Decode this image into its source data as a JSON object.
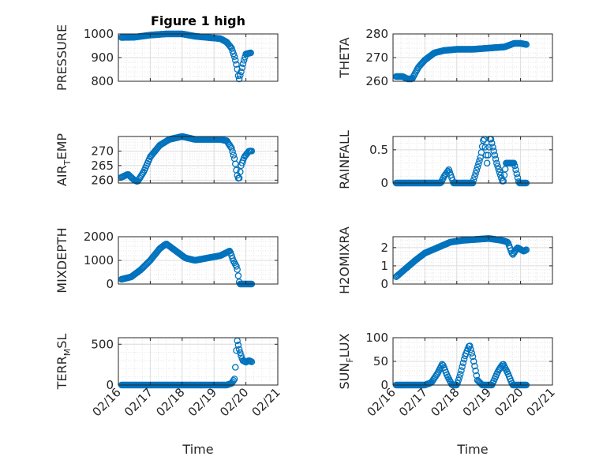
{
  "chart_data": [
    {
      "type": "scatter",
      "title": "Figure 1 high",
      "ylabel_main": "PRESSURE",
      "ylabel_sub": "",
      "ylim": [
        800,
        1000
      ],
      "yticks": [
        "800",
        "900",
        "1000"
      ],
      "xticks": [
        "02/16",
        "02/17",
        "02/18",
        "02/19",
        "02/20",
        "02/21"
      ],
      "show_xticks": false,
      "xlabel": "",
      "grid": true,
      "marker_color": "#0072bd",
      "keypoints": [
        [
          16.1,
          985
        ],
        [
          16.5,
          986
        ],
        [
          17.0,
          995
        ],
        [
          17.5,
          1000
        ],
        [
          18.0,
          1000
        ],
        [
          18.4,
          990
        ],
        [
          18.8,
          985
        ],
        [
          19.2,
          980
        ],
        [
          19.4,
          965
        ],
        [
          19.55,
          940
        ],
        [
          19.65,
          900
        ],
        [
          19.72,
          860
        ],
        [
          19.78,
          805
        ],
        [
          19.85,
          840
        ],
        [
          19.92,
          880
        ],
        [
          20.0,
          915
        ],
        [
          20.15,
          920
        ]
      ]
    },
    {
      "type": "scatter",
      "title": "",
      "ylabel_main": "THETA",
      "ylabel_sub": "",
      "ylim": [
        260,
        280
      ],
      "yticks": [
        "260",
        "270",
        "280"
      ],
      "xticks": [
        "02/16",
        "02/17",
        "02/18",
        "02/19",
        "02/20",
        "02/21"
      ],
      "show_xticks": false,
      "xlabel": "",
      "grid": true,
      "marker_color": "#0072bd",
      "keypoints": [
        [
          16.1,
          262
        ],
        [
          16.3,
          262
        ],
        [
          16.45,
          261
        ],
        [
          16.6,
          261
        ],
        [
          16.8,
          266
        ],
        [
          17.0,
          269
        ],
        [
          17.3,
          272
        ],
        [
          17.6,
          273
        ],
        [
          18.0,
          273.5
        ],
        [
          18.5,
          273.5
        ],
        [
          19.0,
          274
        ],
        [
          19.5,
          274.5
        ],
        [
          19.8,
          276
        ],
        [
          20.0,
          276
        ],
        [
          20.2,
          275.5
        ]
      ]
    },
    {
      "type": "scatter",
      "title": "",
      "ylabel_main": "AIR",
      "ylabel_sub": "T",
      "ylabel_rest": "EMP",
      "ylim": [
        259,
        275
      ],
      "yticks": [
        "260",
        "265",
        "270"
      ],
      "xticks": [
        "02/16",
        "02/17",
        "02/18",
        "02/19",
        "02/20",
        "02/21"
      ],
      "show_xticks": false,
      "xlabel": "",
      "grid": true,
      "marker_color": "#0072bd",
      "keypoints": [
        [
          16.1,
          261
        ],
        [
          16.3,
          262
        ],
        [
          16.5,
          260
        ],
        [
          16.6,
          259.5
        ],
        [
          16.8,
          263
        ],
        [
          17.0,
          268
        ],
        [
          17.3,
          272
        ],
        [
          17.6,
          274
        ],
        [
          18.0,
          275
        ],
        [
          18.4,
          274
        ],
        [
          18.8,
          274
        ],
        [
          19.2,
          274
        ],
        [
          19.4,
          273.5
        ],
        [
          19.55,
          271
        ],
        [
          19.65,
          267
        ],
        [
          19.72,
          262
        ],
        [
          19.78,
          260
        ],
        [
          19.85,
          265
        ],
        [
          19.95,
          268
        ],
        [
          20.1,
          270
        ],
        [
          20.2,
          270
        ]
      ]
    },
    {
      "type": "scatter",
      "title": "",
      "ylabel_main": "RAINFALL",
      "ylabel_sub": "",
      "ylim": [
        0,
        0.7
      ],
      "yticks": [
        "0",
        "0.5"
      ],
      "xticks": [
        "02/16",
        "02/17",
        "02/18",
        "02/19",
        "02/20",
        "02/21"
      ],
      "show_xticks": false,
      "xlabel": "",
      "grid": true,
      "marker_color": "#0072bd",
      "keypoints": [
        [
          16.1,
          0
        ],
        [
          16.5,
          0
        ],
        [
          17.0,
          0
        ],
        [
          17.5,
          0
        ],
        [
          17.6,
          0.1
        ],
        [
          17.75,
          0.2
        ],
        [
          17.9,
          0
        ],
        [
          18.5,
          0
        ],
        [
          18.75,
          0.4
        ],
        [
          18.85,
          0.7
        ],
        [
          18.95,
          0.3
        ],
        [
          19.05,
          0.7
        ],
        [
          19.15,
          0.5
        ],
        [
          19.25,
          0.3
        ],
        [
          19.45,
          0
        ],
        [
          19.55,
          0.3
        ],
        [
          19.8,
          0.3
        ],
        [
          19.95,
          0
        ],
        [
          20.2,
          0
        ]
      ]
    },
    {
      "type": "scatter",
      "title": "",
      "ylabel_main": "MIXDEPTH",
      "ylabel_sub": "",
      "ylim": [
        0,
        2000
      ],
      "yticks": [
        "0",
        "1000",
        "2000"
      ],
      "xticks": [
        "02/16",
        "02/17",
        "02/18",
        "02/19",
        "02/20",
        "02/21"
      ],
      "show_xticks": false,
      "xlabel": "",
      "grid": true,
      "marker_color": "#0072bd",
      "keypoints": [
        [
          16.1,
          200
        ],
        [
          16.4,
          300
        ],
        [
          16.7,
          600
        ],
        [
          17.0,
          1000
        ],
        [
          17.3,
          1500
        ],
        [
          17.5,
          1700
        ],
        [
          17.8,
          1400
        ],
        [
          18.1,
          1100
        ],
        [
          18.4,
          1000
        ],
        [
          18.8,
          1100
        ],
        [
          19.2,
          1200
        ],
        [
          19.5,
          1400
        ],
        [
          19.6,
          1000
        ],
        [
          19.72,
          700
        ],
        [
          19.8,
          0
        ],
        [
          20.0,
          0
        ],
        [
          20.2,
          0
        ]
      ]
    },
    {
      "type": "scatter",
      "title": "",
      "ylabel_main": "H2OMIXRA",
      "ylabel_sub": "",
      "ylim": [
        0,
        2.6
      ],
      "yticks": [
        "0",
        "1",
        "2"
      ],
      "xticks": [
        "02/16",
        "02/17",
        "02/18",
        "02/19",
        "02/20",
        "02/21"
      ],
      "show_xticks": false,
      "xlabel": "",
      "grid": true,
      "marker_color": "#0072bd",
      "keypoints": [
        [
          16.1,
          0.4
        ],
        [
          16.3,
          0.7
        ],
        [
          16.5,
          1.0
        ],
        [
          16.7,
          1.3
        ],
        [
          17.0,
          1.7
        ],
        [
          17.4,
          2.0
        ],
        [
          17.8,
          2.3
        ],
        [
          18.2,
          2.4
        ],
        [
          18.6,
          2.45
        ],
        [
          19.0,
          2.5
        ],
        [
          19.4,
          2.4
        ],
        [
          19.6,
          2.3
        ],
        [
          19.75,
          1.6
        ],
        [
          19.9,
          2.0
        ],
        [
          20.1,
          1.8
        ],
        [
          20.2,
          1.9
        ]
      ]
    },
    {
      "type": "scatter",
      "title": "",
      "ylabel_main": "TERR",
      "ylabel_sub": "M",
      "ylabel_rest": "SL",
      "ylim": [
        0,
        580
      ],
      "yticks": [
        "0",
        "500"
      ],
      "xticks": [
        "02/16",
        "02/17",
        "02/18",
        "02/19",
        "02/20",
        "02/21"
      ],
      "show_xticks": true,
      "xlabel": "Time",
      "grid": true,
      "marker_color": "#0072bd",
      "keypoints": [
        [
          16.1,
          0
        ],
        [
          16.5,
          0
        ],
        [
          17.0,
          0
        ],
        [
          17.5,
          0
        ],
        [
          18.0,
          0
        ],
        [
          18.5,
          0
        ],
        [
          19.0,
          0
        ],
        [
          19.4,
          0
        ],
        [
          19.55,
          20
        ],
        [
          19.65,
          80
        ],
        [
          19.72,
          560
        ],
        [
          19.8,
          420
        ],
        [
          19.9,
          300
        ],
        [
          20.0,
          280
        ],
        [
          20.1,
          300
        ],
        [
          20.2,
          280
        ]
      ]
    },
    {
      "type": "scatter",
      "title": "",
      "ylabel_main": "SUN",
      "ylabel_sub": "F",
      "ylabel_rest": "LUX",
      "ylim": [
        0,
        100
      ],
      "yticks": [
        "0",
        "50",
        "100"
      ],
      "xticks": [
        "02/16",
        "02/17",
        "02/18",
        "02/19",
        "02/20",
        "02/21"
      ],
      "show_xticks": true,
      "xlabel": "Time",
      "grid": true,
      "marker_color": "#0072bd",
      "keypoints": [
        [
          16.1,
          0
        ],
        [
          16.5,
          0
        ],
        [
          17.0,
          0
        ],
        [
          17.2,
          5
        ],
        [
          17.4,
          25
        ],
        [
          17.55,
          45
        ],
        [
          17.7,
          20
        ],
        [
          17.85,
          0
        ],
        [
          18.0,
          0
        ],
        [
          18.1,
          20
        ],
        [
          18.25,
          60
        ],
        [
          18.4,
          85
        ],
        [
          18.5,
          60
        ],
        [
          18.65,
          10
        ],
        [
          18.8,
          0
        ],
        [
          19.1,
          0
        ],
        [
          19.3,
          30
        ],
        [
          19.45,
          45
        ],
        [
          19.6,
          25
        ],
        [
          19.75,
          0
        ],
        [
          20.2,
          0
        ]
      ]
    }
  ]
}
